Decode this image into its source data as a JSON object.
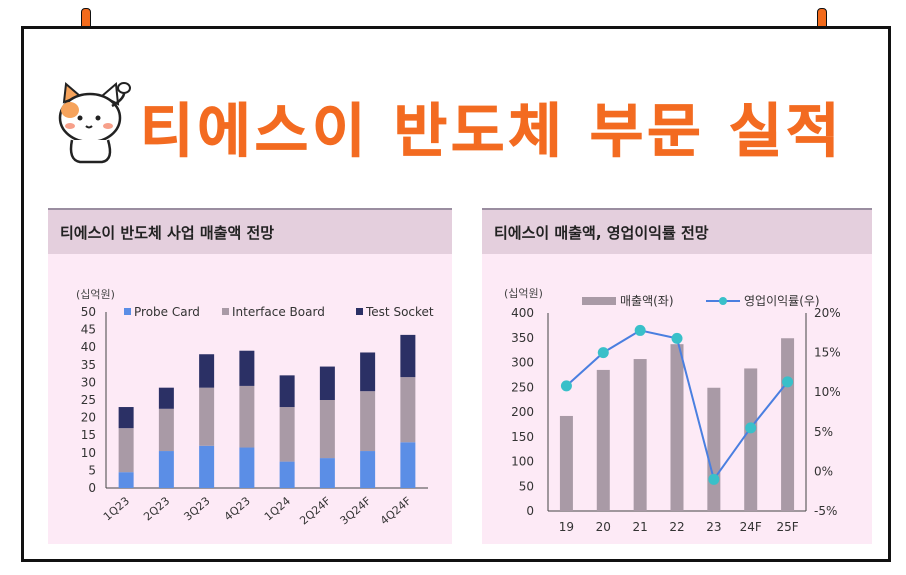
{
  "page": {
    "title": "티에스이 반도체 부문 실적"
  },
  "left_panel": {
    "title": "티에스이 반도체 사업 매출액 전망"
  },
  "right_panel": {
    "title": "티에스이 매출액, 영업이익률 전망"
  },
  "colors": {
    "accent": "#f36b21",
    "probe": "#5b8ee6",
    "interface": "#a99aa6",
    "socket": "#2b3065",
    "bar": "#a99aa6",
    "line": "#4a7fe0",
    "marker": "#39c0c9"
  },
  "chart_data": [
    {
      "type": "bar",
      "stacked": true,
      "unit_label": "(십억원)",
      "categories": [
        "1Q23",
        "2Q23",
        "3Q23",
        "4Q23",
        "1Q24",
        "2Q24F",
        "3Q24F",
        "4Q24F"
      ],
      "series": [
        {
          "name": "Probe Card",
          "values": [
            4.5,
            10.5,
            12,
            11.5,
            7.5,
            8.5,
            10.5,
            13
          ]
        },
        {
          "name": "Interface Board",
          "values": [
            12.5,
            12,
            16.5,
            17.5,
            15.5,
            16.5,
            17,
            18.5
          ]
        },
        {
          "name": "Test Socket",
          "values": [
            6,
            6,
            9.5,
            10,
            9,
            9.5,
            11,
            12
          ]
        }
      ],
      "ylim": [
        0,
        50
      ],
      "yticks": [
        "0",
        "5",
        "10",
        "15",
        "20",
        "25",
        "30",
        "35",
        "40",
        "45",
        "50"
      ],
      "legend": "top"
    },
    {
      "type": "bar+line",
      "unit_label": "(십억원)",
      "categories": [
        "19",
        "20",
        "21",
        "22",
        "23",
        "24F",
        "25F"
      ],
      "series": [
        {
          "name": "매출액(좌)",
          "type": "bar",
          "axis": "left",
          "values": [
            192,
            285,
            307,
            337,
            249,
            288,
            349
          ]
        },
        {
          "name": "영업이익률(우)",
          "type": "line",
          "axis": "right",
          "values": [
            10.8,
            15.0,
            17.8,
            16.8,
            -1.0,
            5.5,
            11.3
          ]
        }
      ],
      "ylim_left": [
        0,
        400
      ],
      "ylim_right": [
        -5,
        20
      ],
      "yticks_left": [
        "0",
        "50",
        "100",
        "150",
        "200",
        "250",
        "300",
        "350",
        "400"
      ],
      "yticks_right": [
        "-5%",
        "0%",
        "5%",
        "10%",
        "15%",
        "20%"
      ],
      "legend": "top"
    }
  ]
}
